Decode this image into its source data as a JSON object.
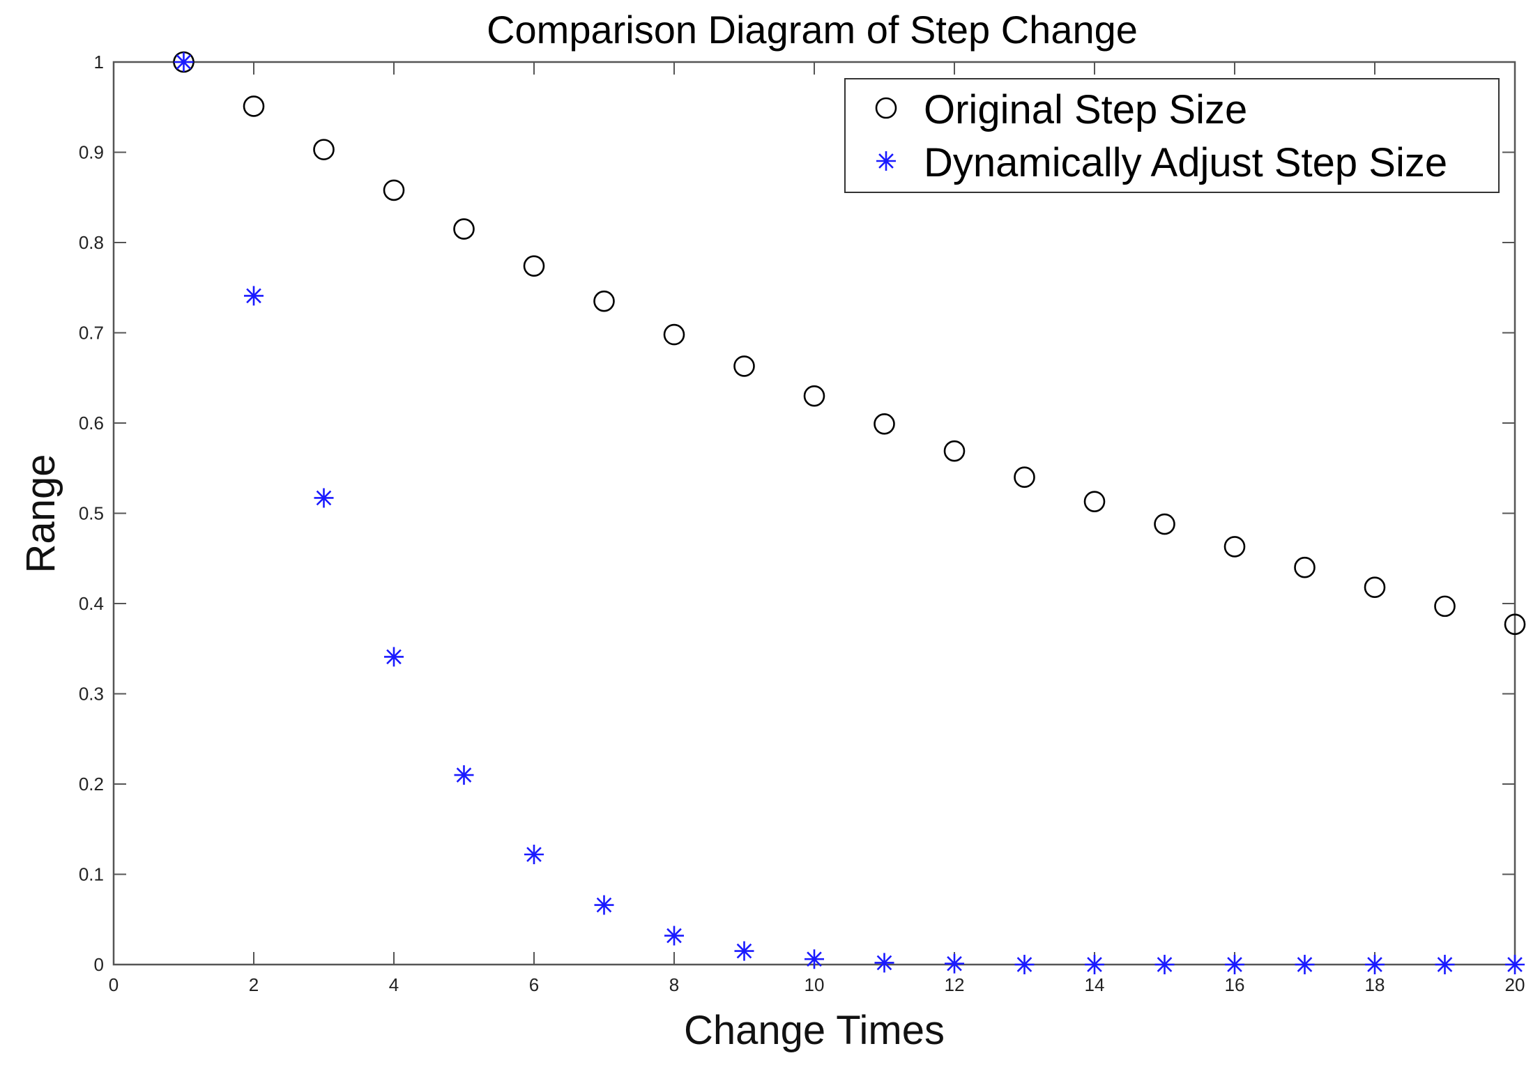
{
  "chart_data": {
    "type": "scatter",
    "title": "Comparison Diagram of Step Change",
    "xlabel": "Change Times",
    "ylabel": "Range",
    "xlim": [
      0,
      20
    ],
    "ylim": [
      0,
      1
    ],
    "x_ticks": [
      "0",
      "2",
      "4",
      "6",
      "8",
      "10",
      "12",
      "14",
      "16",
      "18",
      "20"
    ],
    "y_ticks": [
      "0",
      "0.1",
      "0.2",
      "0.3",
      "0.4",
      "0.5",
      "0.6",
      "0.7",
      "0.8",
      "0.9",
      "1"
    ],
    "grid": false,
    "legend_position": "top-right",
    "series": [
      {
        "name": "Original Step Size",
        "marker": "circle",
        "color": "#000000",
        "x": [
          1,
          2,
          3,
          4,
          5,
          6,
          7,
          8,
          9,
          10,
          11,
          12,
          13,
          14,
          15,
          16,
          17,
          18,
          19,
          20
        ],
        "y": [
          1.0,
          0.951,
          0.903,
          0.858,
          0.815,
          0.774,
          0.735,
          0.698,
          0.663,
          0.63,
          0.599,
          0.569,
          0.54,
          0.513,
          0.488,
          0.463,
          0.44,
          0.418,
          0.397,
          0.377
        ]
      },
      {
        "name": "Dynamically Adjust Step Size",
        "marker": "asterisk",
        "color": "#1a1aff",
        "x": [
          1,
          2,
          3,
          4,
          5,
          6,
          7,
          8,
          9,
          10,
          11,
          12,
          13,
          14,
          15,
          16,
          17,
          18,
          19,
          20
        ],
        "y": [
          1.0,
          0.741,
          0.517,
          0.341,
          0.21,
          0.122,
          0.066,
          0.032,
          0.015,
          0.006,
          0.002,
          0.001,
          0.0,
          0.0,
          0.0,
          0.0,
          0.0,
          0.0,
          0.0,
          0.0
        ]
      }
    ]
  }
}
